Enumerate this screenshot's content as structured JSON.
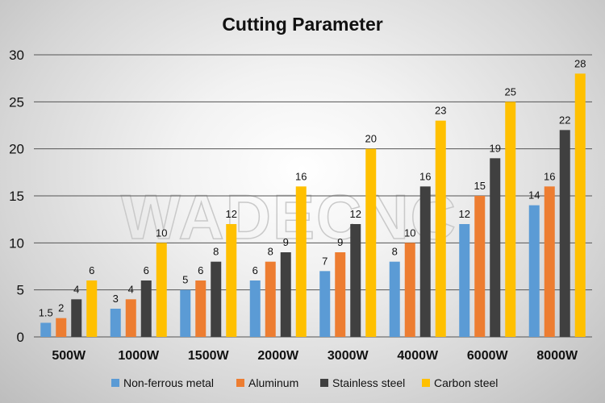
{
  "chart_data": {
    "type": "bar",
    "title": "Cutting Parameter",
    "xlabel": "",
    "ylabel": "",
    "categories": [
      "500W",
      "1000W",
      "1500W",
      "2000W",
      "3000W",
      "4000W",
      "6000W",
      "8000W"
    ],
    "series": [
      {
        "name": "Non-ferrous metal",
        "color": "#5b9bd5",
        "values": [
          1.5,
          3,
          5,
          6,
          7,
          8,
          12,
          14
        ]
      },
      {
        "name": "Aluminum",
        "color": "#ed7d31",
        "values": [
          2,
          4,
          6,
          8,
          9,
          10,
          15,
          16
        ]
      },
      {
        "name": "Stainless steel",
        "color": "#404040",
        "values": [
          4,
          6,
          8,
          9,
          12,
          16,
          19,
          22
        ]
      },
      {
        "name": "Carbon steel",
        "color": "#ffc000",
        "values": [
          6,
          10,
          12,
          16,
          20,
          23,
          25,
          28
        ]
      }
    ],
    "ylim": [
      0,
      30
    ],
    "yticks": [
      0,
      5,
      10,
      15,
      20,
      25,
      30
    ],
    "grid": true,
    "legend_position": "bottom",
    "data_labels": true,
    "watermark": "WADECNC"
  }
}
